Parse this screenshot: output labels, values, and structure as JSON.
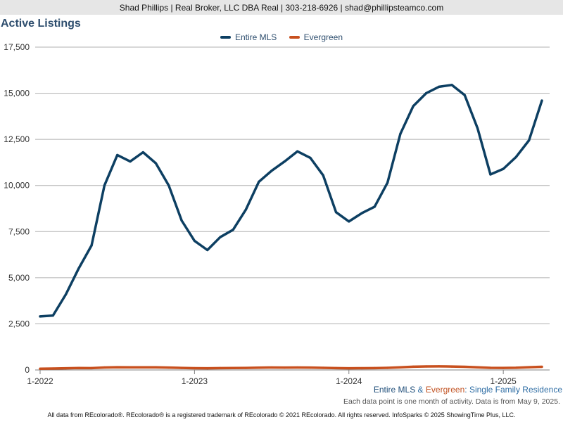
{
  "header": {
    "contact_line": "Shad Phillips | Real Broker, LLC DBA Real | 303-218-6926 | shad@phillipsteamco.com"
  },
  "chart_title": "Active Listings",
  "series_caption": {
    "part1": "Entire MLS",
    "sep1": " & ",
    "part2": "Evergreen",
    "sep2": ": ",
    "part3": "Single Family Residence"
  },
  "note": "Each data point is one month of activity. Data is from May 9, 2025.",
  "footer": "All data from REcolorado®. REcolorado® is a registered trademark of REcolorado © 2021 REcolorado. All rights reserved. InfoSparks © 2025 ShowingTime Plus, LLC.",
  "colors": {
    "entire_mls": "#0d3f62",
    "evergreen": "#c8501e",
    "grid": "#b0b0b0"
  },
  "chart_data": {
    "type": "line",
    "title": "Active Listings",
    "xlabel": "",
    "ylabel": "",
    "ylim": [
      0,
      17500
    ],
    "y_ticks": [
      0,
      2500,
      5000,
      7500,
      10000,
      12500,
      15000,
      17500
    ],
    "y_tick_labels": [
      "0",
      "2,500",
      "5,000",
      "7,500",
      "10,000",
      "12,500",
      "15,000",
      "17,500"
    ],
    "x_tick_labels": [
      {
        "label": "1-2022",
        "index": 0
      },
      {
        "label": "1-2023",
        "index": 12
      },
      {
        "label": "1-2024",
        "index": 24
      },
      {
        "label": "1-2025",
        "index": 36
      }
    ],
    "x": [
      "1-2022",
      "2-2022",
      "3-2022",
      "4-2022",
      "5-2022",
      "6-2022",
      "7-2022",
      "8-2022",
      "9-2022",
      "10-2022",
      "11-2022",
      "12-2022",
      "1-2023",
      "2-2023",
      "3-2023",
      "4-2023",
      "5-2023",
      "6-2023",
      "7-2023",
      "8-2023",
      "9-2023",
      "10-2023",
      "11-2023",
      "12-2023",
      "1-2024",
      "2-2024",
      "3-2024",
      "4-2024",
      "5-2024",
      "6-2024",
      "7-2024",
      "8-2024",
      "9-2024",
      "10-2024",
      "11-2024",
      "12-2024",
      "1-2025",
      "2-2025",
      "3-2025",
      "4-2025"
    ],
    "legend_position": "top-center",
    "grid": true,
    "series": [
      {
        "name": "Entire MLS",
        "color": "#0d3f62",
        "values": [
          2900,
          2950,
          4100,
          5500,
          6750,
          10000,
          11650,
          11300,
          11800,
          11200,
          10000,
          8100,
          7000,
          6500,
          7200,
          7600,
          8700,
          10200,
          10800,
          11300,
          11850,
          11500,
          10550,
          8550,
          8050,
          8500,
          8850,
          10150,
          12800,
          14300,
          15000,
          15350,
          15450,
          14900,
          13100,
          10600,
          10900,
          11550,
          12450,
          14600
        ]
      },
      {
        "name": "Evergreen",
        "color": "#c8501e",
        "values": [
          70,
          75,
          90,
          105,
          100,
          135,
          150,
          140,
          145,
          140,
          130,
          110,
          95,
          90,
          100,
          105,
          110,
          125,
          135,
          130,
          135,
          130,
          115,
          100,
          90,
          95,
          100,
          115,
          145,
          175,
          190,
          195,
          185,
          170,
          140,
          115,
          110,
          120,
          150,
          170
        ]
      }
    ]
  }
}
